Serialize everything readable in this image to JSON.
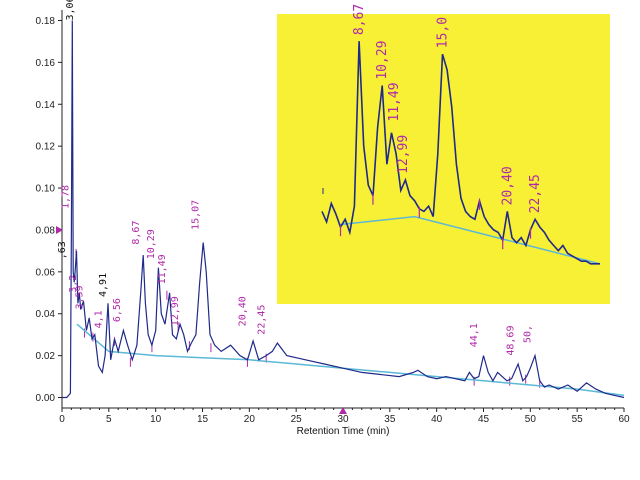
{
  "chart_data": {
    "type": "line",
    "title": "",
    "xlabel": "Retention Time (min)",
    "ylabel": "",
    "xlim": [
      0,
      60
    ],
    "ylim": [
      -0.005,
      0.185
    ],
    "x_ticks": [
      0,
      5,
      10,
      15,
      20,
      25,
      30,
      35,
      40,
      45,
      50,
      55,
      60
    ],
    "y_ticks": [
      0.0,
      0.02,
      0.04,
      0.06,
      0.08,
      0.1,
      0.12,
      0.14,
      0.16,
      0.18
    ],
    "y_tick_labels": [
      "0.00",
      "0.02",
      "0.04",
      "0.06",
      "0.08",
      "0.10",
      "0.12",
      "0.14",
      "0.16",
      "0.18"
    ],
    "grid": false,
    "series": [
      {
        "color": "#1f2a8a",
        "x": [
          0,
          0.5,
          0.9,
          1.0,
          1.1,
          1.2,
          1.3,
          1.4,
          1.55,
          1.7,
          1.85,
          2.0,
          2.3,
          2.6,
          2.9,
          3.2,
          3.5,
          3.9,
          4.3,
          4.6,
          4.91,
          5.2,
          5.6,
          6.0,
          6.56,
          7.0,
          7.5,
          8.0,
          8.4,
          8.67,
          8.9,
          9.2,
          9.6,
          10.0,
          10.29,
          10.6,
          11.0,
          11.49,
          11.8,
          12.2,
          12.6,
          12.99,
          13.4,
          13.8,
          14.3,
          14.7,
          15.07,
          15.4,
          15.8,
          16.3,
          17.0,
          18.0,
          19.0,
          19.8,
          20.4,
          21.0,
          21.8,
          22.45,
          23.0,
          24.0,
          26.0,
          28.0,
          30.0,
          32.0,
          34.0,
          36.0,
          37.5,
          38.0,
          39.0,
          40.0,
          41.0,
          42.0,
          43.0,
          43.5,
          44.0,
          44.5,
          45.0,
          45.5,
          46.0,
          46.5,
          47.0,
          47.5,
          48.0,
          48.69,
          49.2,
          49.6,
          50.0,
          50.5,
          51.0,
          51.5,
          52.0,
          53.0,
          54.0,
          55.0,
          56.0,
          57.0,
          58.0,
          59.0,
          60.0
        ],
        "y": [
          0.0,
          0.0,
          0.002,
          0.08,
          0.18,
          0.06,
          0.055,
          0.06,
          0.07,
          0.045,
          0.05,
          0.042,
          0.046,
          0.032,
          0.038,
          0.028,
          0.03,
          0.015,
          0.012,
          0.02,
          0.045,
          0.018,
          0.028,
          0.022,
          0.032,
          0.025,
          0.018,
          0.025,
          0.05,
          0.068,
          0.045,
          0.03,
          0.025,
          0.032,
          0.062,
          0.04,
          0.035,
          0.05,
          0.03,
          0.028,
          0.035,
          0.03,
          0.022,
          0.026,
          0.03,
          0.055,
          0.074,
          0.06,
          0.03,
          0.025,
          0.022,
          0.025,
          0.02,
          0.018,
          0.027,
          0.018,
          0.02,
          0.022,
          0.026,
          0.02,
          0.018,
          0.016,
          0.014,
          0.012,
          0.011,
          0.01,
          0.012,
          0.013,
          0.01,
          0.009,
          0.01,
          0.009,
          0.008,
          0.012,
          0.009,
          0.01,
          0.02,
          0.012,
          0.008,
          0.012,
          0.01,
          0.008,
          0.009,
          0.016,
          0.008,
          0.01,
          0.014,
          0.02,
          0.008,
          0.005,
          0.006,
          0.004,
          0.006,
          0.003,
          0.007,
          0.004,
          0.002,
          0.001,
          0.0
        ]
      }
    ],
    "peak_labels": [
      {
        "text": "3,06",
        "x": 1.2,
        "y": 0.18,
        "style": "dark"
      },
      {
        "text": "1,78",
        "x": 0.7,
        "y": 0.09,
        "style": "normal"
      },
      {
        "text": ",63",
        "x": 0.3,
        "y": 0.066,
        "style": "dark"
      },
      {
        "text": "3,2",
        "x": 1.5,
        "y": 0.05,
        "style": "normal"
      },
      {
        "text": "3,59",
        "x": 2.2,
        "y": 0.042,
        "style": "normal"
      },
      {
        "text": "4,91",
        "x": 4.7,
        "y": 0.048,
        "style": "dark"
      },
      {
        "text": "4,1",
        "x": 4.2,
        "y": 0.033,
        "style": "normal"
      },
      {
        "text": "6,56",
        "x": 6.2,
        "y": 0.036,
        "style": "normal"
      },
      {
        "text": "8,67",
        "x": 8.2,
        "y": 0.073,
        "style": "normal"
      },
      {
        "text": "10,29",
        "x": 9.8,
        "y": 0.066,
        "style": "normal"
      },
      {
        "text": "11,49",
        "x": 11.0,
        "y": 0.054,
        "style": "normal"
      },
      {
        "text": "12,99",
        "x": 12.4,
        "y": 0.034,
        "style": "normal"
      },
      {
        "text": "15,07",
        "x": 14.6,
        "y": 0.08,
        "style": "normal"
      },
      {
        "text": "20,40",
        "x": 19.6,
        "y": 0.034,
        "style": "normal"
      },
      {
        "text": "22,45",
        "x": 21.6,
        "y": 0.03,
        "style": "normal"
      },
      {
        "text": "44,1",
        "x": 44.3,
        "y": 0.024,
        "style": "normal"
      },
      {
        "text": "48,69",
        "x": 48.2,
        "y": 0.02,
        "style": "normal"
      },
      {
        "text": "50,",
        "x": 50.0,
        "y": 0.026,
        "style": "normal"
      }
    ],
    "inset": {
      "background": "#f8f035",
      "x": [
        0,
        1,
        2,
        3,
        4,
        5,
        6,
        7,
        8,
        9,
        10,
        11,
        12,
        13,
        14,
        15,
        16,
        17,
        18,
        19,
        20,
        21,
        22,
        23,
        24,
        25,
        26,
        27,
        28,
        29,
        30,
        31,
        32,
        33,
        34,
        35,
        36,
        37,
        38,
        39,
        40,
        41,
        42,
        43,
        44,
        45,
        46,
        47,
        48,
        49,
        50,
        51,
        52,
        53,
        54,
        55,
        56,
        57,
        58,
        59,
        60
      ],
      "y": [
        0.3,
        0.26,
        0.33,
        0.29,
        0.24,
        0.27,
        0.22,
        0.32,
        0.95,
        0.55,
        0.4,
        0.36,
        0.62,
        0.78,
        0.48,
        0.6,
        0.52,
        0.38,
        0.42,
        0.36,
        0.34,
        0.31,
        0.3,
        0.32,
        0.28,
        0.52,
        0.9,
        0.84,
        0.7,
        0.48,
        0.35,
        0.3,
        0.28,
        0.27,
        0.34,
        0.28,
        0.25,
        0.23,
        0.22,
        0.19,
        0.3,
        0.2,
        0.18,
        0.2,
        0.17,
        0.23,
        0.27,
        0.24,
        0.22,
        0.19,
        0.17,
        0.15,
        0.17,
        0.14,
        0.13,
        0.12,
        0.11,
        0.11,
        0.1,
        0.1,
        0.1
      ],
      "labels": [
        {
          "text": "8,67",
          "x": 8,
          "y": 0.95
        },
        {
          "text": "10,29",
          "x": 13,
          "y": 0.78
        },
        {
          "text": "11,49",
          "x": 15.5,
          "y": 0.62
        },
        {
          "text": "12,99",
          "x": 17.5,
          "y": 0.42
        },
        {
          "text": "15,0",
          "x": 26,
          "y": 0.9
        },
        {
          "text": "20,40",
          "x": 40,
          "y": 0.3
        },
        {
          "text": "22,45",
          "x": 46,
          "y": 0.27
        }
      ]
    }
  }
}
